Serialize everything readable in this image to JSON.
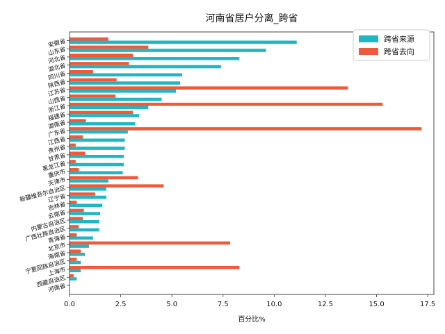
{
  "chart_data": {
    "type": "bar",
    "orientation": "horizontal",
    "title": "河南省居户分离_跨省",
    "xlabel": "百分比%",
    "ylabel": "",
    "xlim": [
      0,
      17.8
    ],
    "xticks": [
      "0.0",
      "2.5",
      "5.0",
      "7.5",
      "10.0",
      "12.5",
      "15.0",
      "17.5"
    ],
    "legend_position": "top-right",
    "categories": [
      "安徽省",
      "山东省",
      "河北省",
      "湖北省",
      "四川省",
      "陕西省",
      "江苏省",
      "山西省",
      "浙江省",
      "福建省",
      "湖南省",
      "广东省",
      "江西省",
      "贵州省",
      "甘肃省",
      "黑龙江省",
      "重庆市",
      "天津市",
      "新疆维吾尔自治区",
      "辽宁省",
      "吉林省",
      "云南省",
      "内蒙古自治区",
      "广西壮族自治区",
      "青海省",
      "北京市",
      "海南省",
      "宁夏回族自治区",
      "上海市",
      "西藏自治区",
      "河南省"
    ],
    "series": [
      {
        "name": "跨省来源",
        "color": "#1fb7c4",
        "values": [
          11.1,
          9.6,
          8.3,
          7.4,
          5.5,
          5.4,
          5.2,
          4.5,
          3.85,
          3.4,
          3.2,
          2.85,
          2.7,
          2.7,
          2.65,
          2.65,
          2.6,
          1.9,
          1.8,
          1.8,
          1.6,
          1.5,
          1.45,
          1.45,
          1.15,
          0.95,
          0.75,
          0.55,
          0.55,
          0.35,
          0.0
        ]
      },
      {
        "name": "跨省去向",
        "color": "#f05a3c",
        "values": [
          1.9,
          3.85,
          3.1,
          2.9,
          1.15,
          2.3,
          13.6,
          2.25,
          15.3,
          3.1,
          0.8,
          17.2,
          0.65,
          0.3,
          0.75,
          0.3,
          0.45,
          3.35,
          4.6,
          1.25,
          0.35,
          0.7,
          0.65,
          0.45,
          0.35,
          7.85,
          0.55,
          0.35,
          8.3,
          0.2,
          0.0
        ]
      }
    ]
  }
}
